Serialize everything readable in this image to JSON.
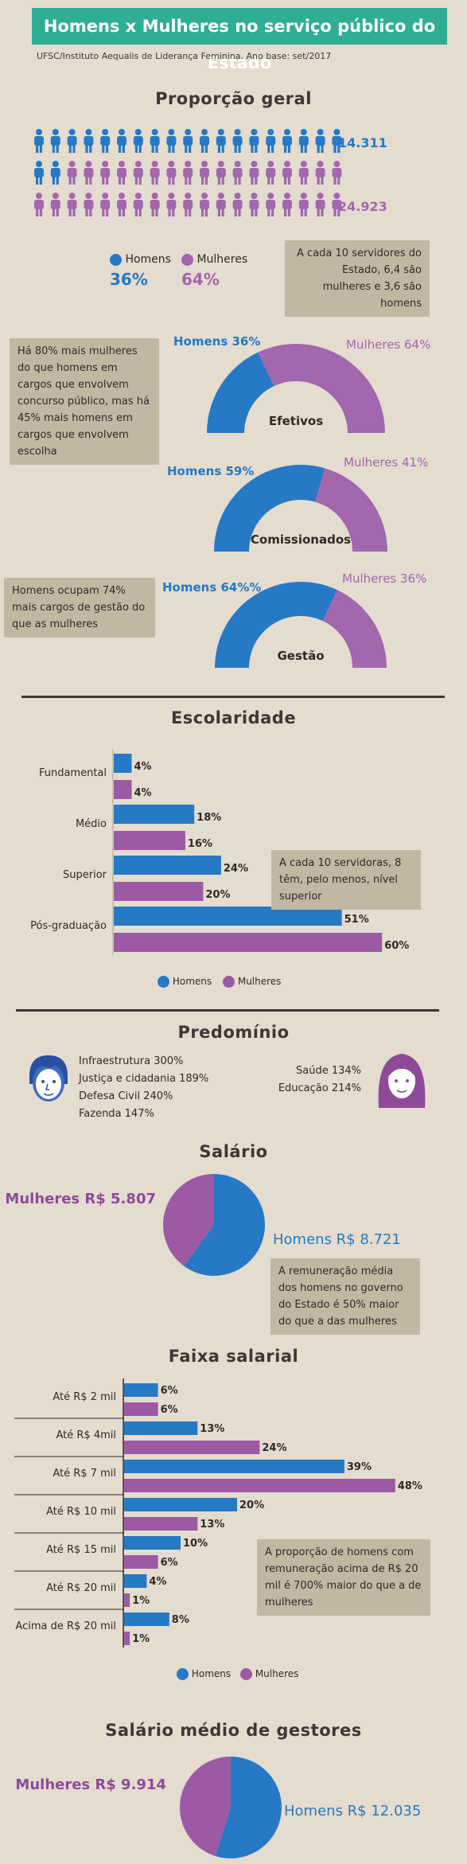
{
  "header": {
    "title": "Homens x Mulheres no serviço público do Estado",
    "source": "UFSC/Instituto Aequalis de Liderança Feminina. Ano base: set/2017"
  },
  "colors": {
    "homens": "#2579c5",
    "mulheres": "#a267ad",
    "mulheres_bar": "#9b5aa3",
    "note_bg": "#c2b7a3",
    "title_bg": "#2fae94"
  },
  "proporcao": {
    "title": "Proporção geral",
    "homens_count": "14.311",
    "mulheres_count": "24.923",
    "legend_homens": "Homens",
    "legend_mulheres": "Mulheres",
    "pct_homens": "36%",
    "pct_mulheres": "64%",
    "note": "A cada 10 servidores do Estado, 6,4 são mulheres e 3,6 são homens"
  },
  "cargos": {
    "note_top": "Há 80% mais mulheres do que homens em cargos que envolvem concurso público, mas há 45% mais homens em cargos que envolvem escolha",
    "note_bottom": "Homens ocupam 74% mais cargos de gestão do que as mulheres"
  },
  "escolaridade": {
    "title": "Escolaridade",
    "note": "A cada 10 servidoras, 8 têm, pelo menos, nível superior",
    "legend_homens": "Homens",
    "legend_mulheres": "Mulheres"
  },
  "predominio": {
    "title": "Predomínio",
    "homens_items": [
      "Infraestrutura 300%",
      "Justiça e cidadania 189%",
      "Defesa Civil 240%",
      "Fazenda 147%"
    ],
    "mulheres_items": [
      "Saúde 134%",
      "Educação 214%"
    ]
  },
  "salario": {
    "title": "Salário",
    "note": "A remuneração média dos homens no governo do Estado é 50% maior do que a das mulheres"
  },
  "faixa": {
    "title": "Faixa salarial",
    "note": "A proporção de homens com remuneração acima de R$ 20 mil é 700% maior do que a de mulheres",
    "legend_homens": "Homens",
    "legend_mulheres": "Mulheres"
  },
  "gestores": {
    "title": "Salário médio de gestores"
  },
  "chart_data": [
    {
      "type": "pictogram",
      "title": "Proporção geral",
      "series": [
        {
          "name": "Homens",
          "count": 14311,
          "percent": 36
        },
        {
          "name": "Mulheres",
          "count": 24923,
          "percent": 64
        }
      ]
    },
    {
      "type": "pie",
      "subtype": "semi-donut",
      "title": "Efetivos",
      "series": [
        {
          "name": "Homens",
          "value": 36,
          "label": "Homens 36%"
        },
        {
          "name": "Mulheres",
          "value": 64,
          "label": "Mulheres 64%"
        }
      ]
    },
    {
      "type": "pie",
      "subtype": "semi-donut",
      "title": "Comissionados",
      "series": [
        {
          "name": "Homens",
          "value": 59,
          "label": "Homens 59%"
        },
        {
          "name": "Mulheres",
          "value": 41,
          "label": "Mulheres 41%"
        }
      ]
    },
    {
      "type": "pie",
      "subtype": "semi-donut",
      "title": "Gestão",
      "series": [
        {
          "name": "Homens",
          "value": 64,
          "label": "Homens 64%%"
        },
        {
          "name": "Mulheres",
          "value": 36,
          "label": "Mulheres 36%"
        }
      ]
    },
    {
      "type": "bar",
      "orientation": "horizontal",
      "title": "Escolaridade",
      "categories": [
        "Fundamental",
        "Médio",
        "Superior",
        "Pós-graduação"
      ],
      "series": [
        {
          "name": "Homens",
          "values": [
            4,
            18,
            24,
            51
          ],
          "labels": [
            "4%",
            "18%",
            "24%",
            "51%"
          ]
        },
        {
          "name": "Mulheres",
          "values": [
            4,
            16,
            20,
            60
          ],
          "labels": [
            "4%",
            "16%",
            "20%",
            "60%"
          ]
        }
      ],
      "legend": "bottom"
    },
    {
      "type": "pie",
      "title": "Salário",
      "series": [
        {
          "name": "Homens",
          "value": 8721,
          "label": "Homens R$ 8.721"
        },
        {
          "name": "Mulheres",
          "value": 5807,
          "label": "Mulheres R$ 5.807"
        }
      ]
    },
    {
      "type": "bar",
      "orientation": "horizontal",
      "title": "Faixa salarial",
      "categories": [
        "Até R$ 2 mil",
        "Até R$ 4mil",
        "Até R$ 7 mil",
        "Até R$ 10 mil",
        "Até R$ 15 mil",
        "Até R$ 20 mil",
        "Acima de R$ 20 mil"
      ],
      "series": [
        {
          "name": "Homens",
          "values": [
            6,
            13,
            39,
            20,
            10,
            4,
            8
          ],
          "labels": [
            "6%",
            "13%",
            "39%",
            "20%",
            "10%",
            "4%",
            "8%"
          ]
        },
        {
          "name": "Mulheres",
          "values": [
            6,
            24,
            48,
            13,
            6,
            1,
            1
          ],
          "labels": [
            "6%",
            "24%",
            "48%",
            "13%",
            "6%",
            "1%",
            "1%"
          ]
        }
      ],
      "legend": "bottom"
    },
    {
      "type": "pie",
      "title": "Salário médio de gestores",
      "series": [
        {
          "name": "Homens",
          "value": 12035,
          "label": "Homens R$ 12.035"
        },
        {
          "name": "Mulheres",
          "value": 9914,
          "label": "Mulheres R$ 9.914"
        }
      ]
    }
  ]
}
